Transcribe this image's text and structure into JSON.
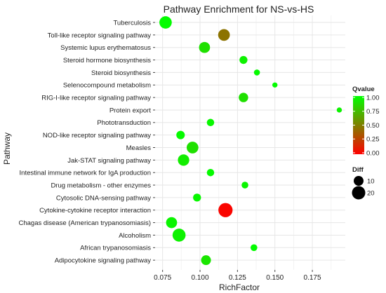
{
  "chart_data": {
    "type": "scatter",
    "title": "Pathway Enrichment for NS-vs-HS",
    "xlabel": "RichFactor",
    "ylabel": "Pathway",
    "xlim": [
      0.07,
      0.197
    ],
    "xticks": [
      0.075,
      0.1,
      0.125,
      0.15,
      0.175
    ],
    "xtick_labels": [
      "0.075",
      "0.100",
      "0.125",
      "0.150",
      "0.175"
    ],
    "grid": true,
    "legend_position": "right",
    "color_legend": {
      "title": "Qvalue",
      "ticks": [
        "1.00",
        "0.75",
        "0.50",
        "0.25",
        "0.00"
      ],
      "range": [
        0,
        1
      ],
      "low_color": "#ff0000",
      "high_color": "#00ff00"
    },
    "size_legend": {
      "title": "Diff",
      "entries": [
        {
          "label": "10",
          "value": 10
        },
        {
          "label": "20",
          "value": 20
        }
      ]
    },
    "points": [
      {
        "pathway": "Tuberculosis",
        "richfactor": 0.077,
        "qvalue": 0.99,
        "diff": 17
      },
      {
        "pathway": "Toll-like receptor signaling pathway",
        "richfactor": 0.116,
        "qvalue": 0.45,
        "diff": 15
      },
      {
        "pathway": "Systemic lupus erythematosus",
        "richfactor": 0.103,
        "qvalue": 0.88,
        "diff": 13
      },
      {
        "pathway": "Steroid hormone biosynthesis",
        "richfactor": 0.129,
        "qvalue": 0.95,
        "diff": 6
      },
      {
        "pathway": "Steroid biosynthesis",
        "richfactor": 0.138,
        "qvalue": 0.98,
        "diff": 3
      },
      {
        "pathway": "Selenocompound metabolism",
        "richfactor": 0.15,
        "qvalue": 0.99,
        "diff": 2
      },
      {
        "pathway": "RIG-I-like receptor signaling pathway",
        "richfactor": 0.129,
        "qvalue": 0.88,
        "diff": 9
      },
      {
        "pathway": "Protein export",
        "richfactor": 0.193,
        "qvalue": 0.95,
        "diff": 2
      },
      {
        "pathway": "Phototransduction",
        "richfactor": 0.107,
        "qvalue": 0.97,
        "diff": 5
      },
      {
        "pathway": "NOD-like receptor signaling pathway",
        "richfactor": 0.087,
        "qvalue": 0.98,
        "diff": 7
      },
      {
        "pathway": "Measles",
        "richfactor": 0.095,
        "qvalue": 0.88,
        "diff": 15
      },
      {
        "pathway": "Jak-STAT signaling pathway",
        "richfactor": 0.089,
        "qvalue": 0.93,
        "diff": 14
      },
      {
        "pathway": "Intestinal immune network for IgA production",
        "richfactor": 0.107,
        "qvalue": 0.98,
        "diff": 5
      },
      {
        "pathway": "Drug metabolism - other enzymes",
        "richfactor": 0.13,
        "qvalue": 0.96,
        "diff": 4
      },
      {
        "pathway": "Cytosolic DNA-sensing pathway",
        "richfactor": 0.098,
        "qvalue": 0.97,
        "diff": 6
      },
      {
        "pathway": "Cytokine-cytokine receptor interaction",
        "richfactor": 0.117,
        "qvalue": 0.02,
        "diff": 23
      },
      {
        "pathway": "Chagas disease (American trypanosomiasis)",
        "richfactor": 0.081,
        "qvalue": 0.96,
        "diff": 13
      },
      {
        "pathway": "Alcoholism",
        "richfactor": 0.086,
        "qvalue": 0.95,
        "diff": 19
      },
      {
        "pathway": "African trypanosomiasis",
        "richfactor": 0.136,
        "qvalue": 0.99,
        "diff": 4
      },
      {
        "pathway": "Adipocytokine signaling pathway",
        "richfactor": 0.104,
        "qvalue": 0.9,
        "diff": 10
      }
    ]
  }
}
